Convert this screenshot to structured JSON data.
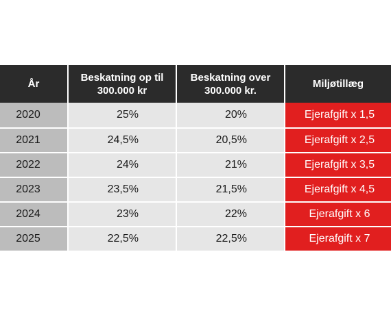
{
  "table": {
    "headers": {
      "year": "År",
      "tax_up_to": "Beskatning op til\n300.000 kr",
      "tax_over": "Beskatning over\n300.000 kr.",
      "environment": "Miljøtillæg"
    },
    "rows": [
      {
        "year": "2020",
        "up_to": "25%",
        "over": "20%",
        "env": "Ejerafgift x 1,5"
      },
      {
        "year": "2021",
        "up_to": "24,5%",
        "over": "20,5%",
        "env": "Ejerafgift x 2,5"
      },
      {
        "year": "2022",
        "up_to": "24%",
        "over": "21%",
        "env": "Ejerafgift x 3,5"
      },
      {
        "year": "2023",
        "up_to": "23,5%",
        "over": "21,5%",
        "env": "Ejerafgift x 4,5"
      },
      {
        "year": "2024",
        "up_to": "23%",
        "over": "22%",
        "env": "Ejerafgift x 6"
      },
      {
        "year": "2025",
        "up_to": "22,5%",
        "over": "22,5%",
        "env": "Ejerafgift x 7"
      }
    ]
  },
  "colors": {
    "header_bg": "#2b2b2b",
    "year_bg": "#bcbcbc",
    "value_bg": "#e6e6e6",
    "environment_bg": "#e11f1f"
  }
}
